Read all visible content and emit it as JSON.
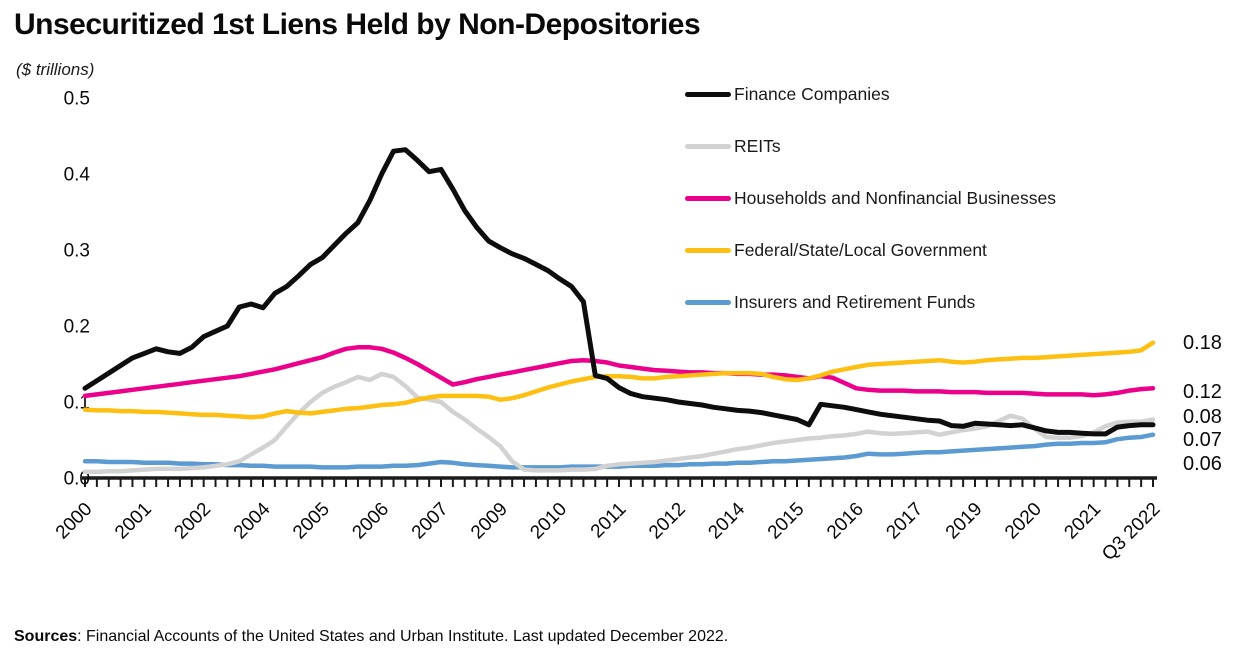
{
  "header": {
    "title": "Unsecuritized 1st Liens Held by Non-Depositories",
    "subtitle": "($ trillions)"
  },
  "source": {
    "label": "Sources",
    "text": ": Financial Accounts of the United States and Urban Institute. Last updated December 2022."
  },
  "chart_data": {
    "type": "line",
    "title": "Unsecuritized 1st Liens Held by Non-Depositories",
    "unit": "$ trillions",
    "frequency": "quarterly",
    "x_start": "2000 Q1",
    "x_end": "2022 Q3",
    "grid": false,
    "legend_position": "top-right",
    "y_axis": {
      "min": 0.0,
      "max": 0.5,
      "ticks": [
        "0.5",
        "0.4",
        "0.3",
        "0.2",
        "0.1",
        "0.0"
      ]
    },
    "x_tick_labels": [
      "2000",
      "2001",
      "2002",
      "2004",
      "2005",
      "2006",
      "2007",
      "2009",
      "2010",
      "2011",
      "2012",
      "2014",
      "2015",
      "2016",
      "2017",
      "2019",
      "2020",
      "2021",
      "Q3 2022"
    ],
    "x_label_every_n_quarters": 5,
    "series": [
      {
        "key": "finance",
        "name": "Finance Companies",
        "color": "#0d0d0d",
        "end_label": "0.07",
        "values": [
          0.118,
          0.128,
          0.138,
          0.148,
          0.158,
          0.164,
          0.17,
          0.166,
          0.164,
          0.172,
          0.186,
          0.193,
          0.2,
          0.225,
          0.229,
          0.224,
          0.243,
          0.252,
          0.266,
          0.281,
          0.29,
          0.306,
          0.322,
          0.336,
          0.365,
          0.4,
          0.43,
          0.432,
          0.418,
          0.403,
          0.406,
          0.38,
          0.352,
          0.33,
          0.312,
          0.303,
          0.295,
          0.289,
          0.281,
          0.273,
          0.262,
          0.252,
          0.232,
          0.135,
          0.131,
          0.119,
          0.111,
          0.107,
          0.105,
          0.103,
          0.1,
          0.098,
          0.096,
          0.093,
          0.091,
          0.089,
          0.088,
          0.086,
          0.083,
          0.08,
          0.077,
          0.07,
          0.097,
          0.095,
          0.093,
          0.09,
          0.087,
          0.084,
          0.082,
          0.08,
          0.078,
          0.076,
          0.075,
          0.069,
          0.068,
          0.072,
          0.071,
          0.07,
          0.069,
          0.07,
          0.066,
          0.062,
          0.06,
          0.06,
          0.059,
          0.058,
          0.058,
          0.067,
          0.069,
          0.07,
          0.07
        ]
      },
      {
        "key": "reits",
        "name": "REITs",
        "color": "#d2d2d2",
        "end_label": "0.08",
        "values": [
          0.008,
          0.008,
          0.009,
          0.009,
          0.01,
          0.011,
          0.012,
          0.012,
          0.012,
          0.013,
          0.014,
          0.016,
          0.018,
          0.022,
          0.031,
          0.04,
          0.05,
          0.068,
          0.085,
          0.1,
          0.112,
          0.12,
          0.126,
          0.133,
          0.129,
          0.137,
          0.133,
          0.121,
          0.106,
          0.103,
          0.1,
          0.087,
          0.077,
          0.065,
          0.054,
          0.042,
          0.022,
          0.011,
          0.01,
          0.01,
          0.01,
          0.011,
          0.011,
          0.012,
          0.016,
          0.018,
          0.019,
          0.02,
          0.021,
          0.023,
          0.025,
          0.027,
          0.029,
          0.032,
          0.035,
          0.038,
          0.04,
          0.043,
          0.046,
          0.048,
          0.05,
          0.052,
          0.053,
          0.055,
          0.056,
          0.058,
          0.061,
          0.059,
          0.058,
          0.059,
          0.06,
          0.061,
          0.057,
          0.06,
          0.063,
          0.065,
          0.068,
          0.075,
          0.082,
          0.078,
          0.065,
          0.054,
          0.053,
          0.053,
          0.055,
          0.06,
          0.068,
          0.073,
          0.074,
          0.074,
          0.077
        ]
      },
      {
        "key": "households",
        "name": "Households and Nonfinancial Businesses",
        "color": "#ec008b",
        "end_label": "0.12",
        "values": [
          0.108,
          0.11,
          0.112,
          0.114,
          0.116,
          0.118,
          0.12,
          0.122,
          0.124,
          0.126,
          0.128,
          0.13,
          0.132,
          0.134,
          0.137,
          0.14,
          0.143,
          0.147,
          0.151,
          0.155,
          0.159,
          0.165,
          0.17,
          0.172,
          0.172,
          0.17,
          0.165,
          0.158,
          0.15,
          0.141,
          0.132,
          0.123,
          0.126,
          0.13,
          0.133,
          0.136,
          0.139,
          0.142,
          0.145,
          0.148,
          0.151,
          0.154,
          0.155,
          0.154,
          0.152,
          0.148,
          0.146,
          0.144,
          0.142,
          0.141,
          0.14,
          0.139,
          0.139,
          0.138,
          0.138,
          0.137,
          0.137,
          0.136,
          0.136,
          0.135,
          0.133,
          0.131,
          0.134,
          0.132,
          0.125,
          0.118,
          0.116,
          0.115,
          0.115,
          0.115,
          0.114,
          0.114,
          0.114,
          0.113,
          0.113,
          0.113,
          0.112,
          0.112,
          0.112,
          0.112,
          0.111,
          0.11,
          0.11,
          0.11,
          0.11,
          0.109,
          0.11,
          0.112,
          0.115,
          0.117,
          0.118
        ]
      },
      {
        "key": "government",
        "name": "Federal/State/Local Government",
        "color": "#fdbf11",
        "end_label": "0.18",
        "values": [
          0.09,
          0.089,
          0.089,
          0.088,
          0.088,
          0.087,
          0.087,
          0.086,
          0.085,
          0.084,
          0.083,
          0.083,
          0.082,
          0.081,
          0.08,
          0.081,
          0.085,
          0.088,
          0.086,
          0.085,
          0.087,
          0.089,
          0.091,
          0.092,
          0.094,
          0.096,
          0.097,
          0.099,
          0.103,
          0.106,
          0.108,
          0.108,
          0.108,
          0.108,
          0.107,
          0.103,
          0.105,
          0.109,
          0.114,
          0.119,
          0.123,
          0.127,
          0.13,
          0.133,
          0.134,
          0.134,
          0.133,
          0.131,
          0.131,
          0.133,
          0.134,
          0.135,
          0.136,
          0.137,
          0.138,
          0.138,
          0.138,
          0.137,
          0.133,
          0.13,
          0.129,
          0.131,
          0.135,
          0.14,
          0.143,
          0.146,
          0.149,
          0.15,
          0.151,
          0.152,
          0.153,
          0.154,
          0.155,
          0.153,
          0.152,
          0.153,
          0.155,
          0.156,
          0.157,
          0.158,
          0.158,
          0.159,
          0.16,
          0.161,
          0.162,
          0.163,
          0.164,
          0.165,
          0.166,
          0.168,
          0.178
        ]
      },
      {
        "key": "insurers",
        "name": "Insurers and Retirement Funds",
        "color": "#5c9ad2",
        "end_label": "0.06",
        "values": [
          0.022,
          0.022,
          0.021,
          0.021,
          0.021,
          0.02,
          0.02,
          0.02,
          0.019,
          0.019,
          0.018,
          0.018,
          0.017,
          0.017,
          0.016,
          0.016,
          0.015,
          0.015,
          0.015,
          0.015,
          0.014,
          0.014,
          0.014,
          0.015,
          0.015,
          0.015,
          0.016,
          0.016,
          0.017,
          0.019,
          0.021,
          0.02,
          0.018,
          0.017,
          0.016,
          0.015,
          0.014,
          0.014,
          0.014,
          0.014,
          0.014,
          0.015,
          0.015,
          0.015,
          0.015,
          0.015,
          0.016,
          0.016,
          0.016,
          0.017,
          0.017,
          0.018,
          0.018,
          0.019,
          0.019,
          0.02,
          0.02,
          0.021,
          0.022,
          0.022,
          0.023,
          0.024,
          0.025,
          0.026,
          0.027,
          0.029,
          0.032,
          0.031,
          0.031,
          0.032,
          0.033,
          0.034,
          0.034,
          0.035,
          0.036,
          0.037,
          0.038,
          0.039,
          0.04,
          0.041,
          0.042,
          0.044,
          0.045,
          0.045,
          0.046,
          0.046,
          0.047,
          0.051,
          0.053,
          0.054,
          0.057
        ]
      }
    ]
  }
}
